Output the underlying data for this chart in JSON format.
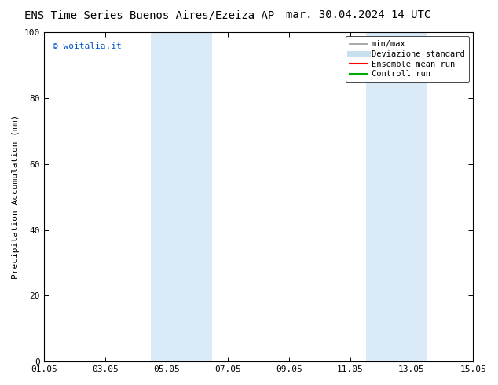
{
  "title_left": "ENS Time Series Buenos Aires/Ezeiza AP",
  "title_right": "mar. 30.04.2024 14 UTC",
  "ylabel": "Precipitation Accumulation (mm)",
  "xlim_min": 0,
  "xlim_max": 14,
  "ylim_min": 0,
  "ylim_max": 100,
  "xtick_labels": [
    "01.05",
    "03.05",
    "05.05",
    "07.05",
    "09.05",
    "11.05",
    "13.05",
    "15.05"
  ],
  "xtick_positions": [
    0,
    2,
    4,
    6,
    8,
    10,
    12,
    14
  ],
  "ytick_labels": [
    "0",
    "20",
    "40",
    "60",
    "80",
    "100"
  ],
  "ytick_positions": [
    0,
    20,
    40,
    60,
    80,
    100
  ],
  "shaded_regions": [
    {
      "xmin": 3.5,
      "xmax": 5.5,
      "color": "#daeaf7"
    },
    {
      "xmin": 10.5,
      "xmax": 12.5,
      "color": "#daeaf7"
    }
  ],
  "watermark_text": "© woitalia.it",
  "watermark_color": "#0055cc",
  "background_color": "#ffffff",
  "legend_entries": [
    {
      "label": "min/max",
      "color": "#999999",
      "lw": 1.2,
      "style": "solid"
    },
    {
      "label": "Deviazione standard",
      "color": "#c8dff0",
      "lw": 5,
      "style": "solid"
    },
    {
      "label": "Ensemble mean run",
      "color": "#ff0000",
      "lw": 1.5,
      "style": "solid"
    },
    {
      "label": "Controll run",
      "color": "#00aa00",
      "lw": 1.5,
      "style": "solid"
    }
  ],
  "title_fontsize": 10,
  "axis_label_fontsize": 8,
  "tick_fontsize": 8,
  "legend_fontsize": 7.5,
  "watermark_fontsize": 8
}
